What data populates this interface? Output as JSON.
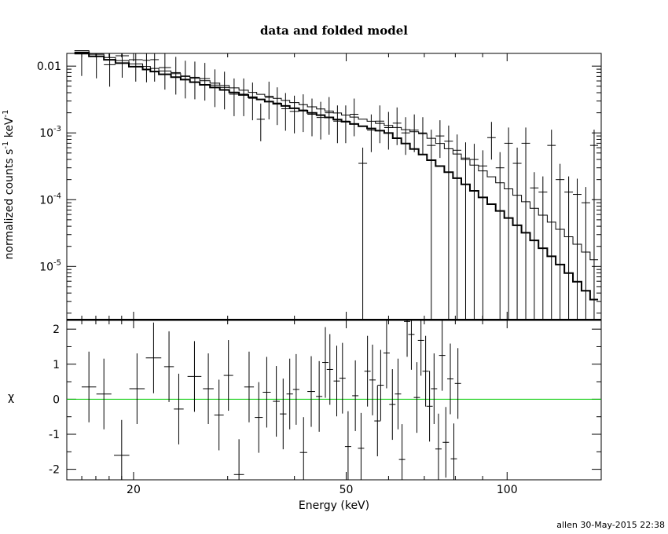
{
  "chart_data": [
    {
      "type": "line",
      "panel": "top",
      "title": "data and folded model",
      "xlabel": "",
      "ylabel_parts": [
        "normalized counts s",
        "-1",
        " keV",
        "-1"
      ],
      "xscale": "log",
      "yscale": "log",
      "xlim": [
        15,
        150
      ],
      "ylim": [
        1.6e-06,
        0.0155
      ],
      "yticks": [
        {
          "value": 0.01,
          "base": "0.01",
          "exp": ""
        },
        {
          "value": 0.001,
          "base": "10",
          "exp": "-3"
        },
        {
          "value": 0.0001,
          "base": "10",
          "exp": "-4"
        },
        {
          "value": 1e-05,
          "base": "10",
          "exp": "-5"
        }
      ],
      "series": [
        {
          "role": "data-crosses",
          "points": [
            [
              15.5,
              16.5,
              0.0152
            ],
            [
              16.5,
              17.6,
              0.014
            ],
            [
              17.6,
              18.5,
              0.0105
            ],
            [
              18.5,
              19.6,
              0.0143
            ],
            [
              19.6,
              20.8,
              0.0125
            ],
            [
              20.8,
              21.5,
              0.0122
            ],
            [
              21.5,
              22.3,
              0.0125
            ],
            [
              22.3,
              23.5,
              0.0095
            ],
            [
              23.5,
              24.5,
              0.008
            ],
            [
              24.5,
              25.5,
              0.007
            ],
            [
              25.5,
              26.6,
              0.0068
            ],
            [
              26.6,
              27.8,
              0.0065
            ],
            [
              27.8,
              29.0,
              0.0052
            ],
            [
              29.0,
              30.2,
              0.0048
            ],
            [
              30.2,
              31.5,
              0.0038
            ],
            [
              31.5,
              32.8,
              0.0038
            ],
            [
              32.8,
              34.0,
              0.0033
            ],
            [
              34.0,
              35.2,
              0.0016
            ],
            [
              35.2,
              36.5,
              0.0034
            ],
            [
              36.5,
              37.8,
              0.0028
            ],
            [
              37.8,
              39.2,
              0.0023
            ],
            [
              39.2,
              40.8,
              0.0021
            ],
            [
              40.8,
              42.3,
              0.0022
            ],
            [
              42.3,
              44.0,
              0.0019
            ],
            [
              44.0,
              45.6,
              0.0017
            ],
            [
              45.6,
              47.3,
              0.002
            ],
            [
              47.3,
              49.0,
              0.0015
            ],
            [
              49.0,
              50.8,
              0.0015
            ],
            [
              50.8,
              52.7,
              0.0019
            ],
            [
              52.7,
              54.7,
              0.00035
            ],
            [
              54.7,
              56.7,
              0.0011
            ],
            [
              56.7,
              58.9,
              0.0015
            ],
            [
              58.9,
              61.1,
              0.0012
            ],
            [
              61.1,
              63.4,
              0.0014
            ],
            [
              63.4,
              65.8,
              0.001
            ],
            [
              65.8,
              68.3,
              0.0011
            ],
            [
              68.3,
              70.8,
              0.001
            ],
            [
              70.8,
              73.5,
              0.00065
            ],
            [
              73.5,
              76.3,
              0.0009
            ],
            [
              76.3,
              79.2,
              0.00075
            ],
            [
              79.2,
              82.1,
              0.00055
            ],
            [
              82.1,
              85.2,
              0.00042
            ],
            [
              85.2,
              88.4,
              0.0004
            ],
            [
              88.4,
              91.8,
              0.00032
            ],
            [
              91.8,
              95.2,
              0.00085
            ],
            [
              95.2,
              98.8,
              0.0003
            ],
            [
              98.8,
              102.5,
              0.0007
            ],
            [
              102.5,
              106.4,
              0.00035
            ],
            [
              106.4,
              110.4,
              0.0007
            ],
            [
              110.4,
              114.5,
              0.00015
            ],
            [
              114.5,
              118.9,
              0.00013
            ],
            [
              118.9,
              123.3,
              0.00065
            ],
            [
              123.3,
              128.0,
              0.0002
            ],
            [
              128.0,
              132.8,
              0.00013
            ],
            [
              132.8,
              137.8,
              0.00012
            ],
            [
              137.8,
              143.0,
              9e-05
            ],
            [
              143.0,
              148.0,
              0.00065
            ]
          ]
        },
        {
          "role": "model-steps",
          "edges": [
            15.5,
            16.5,
            17.6,
            18.5,
            19.6,
            20.8,
            21.5,
            22.3,
            23.5,
            24.5,
            25.5,
            26.6,
            27.8,
            29.0,
            30.2,
            31.5,
            32.8,
            34.0,
            35.2,
            36.5,
            37.8,
            39.2,
            40.8,
            42.3,
            44.0,
            45.6,
            47.3,
            49.0,
            50.8,
            52.7,
            54.7,
            56.7,
            58.9,
            61.1,
            63.4,
            65.8,
            68.3,
            70.8,
            73.5,
            76.3,
            79.2,
            82.1,
            85.2,
            88.4,
            91.8,
            95.2,
            98.8,
            102.5,
            106.4,
            110.4,
            114.5,
            118.9,
            123.3,
            128.0,
            132.8,
            137.8,
            143.0,
            148.0
          ]
        }
      ]
    },
    {
      "type": "scatter",
      "panel": "bottom",
      "xlabel": "Energy (keV)",
      "ylabel": "χ",
      "xscale": "log",
      "xlim": [
        15,
        150
      ],
      "ylim": [
        -2.3,
        2.25
      ],
      "xticks": [
        {
          "value": 20,
          "label": "20"
        },
        {
          "value": 50,
          "label": "50"
        },
        {
          "value": 100,
          "label": "100"
        }
      ],
      "yticks": [
        {
          "value": 2,
          "label": "2"
        },
        {
          "value": 1,
          "label": "1"
        },
        {
          "value": 0,
          "label": "0"
        },
        {
          "value": -1,
          "label": "-1"
        },
        {
          "value": -2,
          "label": "-2"
        }
      ],
      "zero_line_color": "#00cc00",
      "points": [
        [
          16.5,
          0.35
        ],
        [
          17.6,
          0.15
        ],
        [
          19.0,
          -1.6
        ],
        [
          20.3,
          0.3
        ],
        [
          21.8,
          1.18
        ],
        [
          23.3,
          0.93
        ],
        [
          24.3,
          -0.28
        ],
        [
          26.0,
          0.65
        ],
        [
          27.6,
          0.3
        ],
        [
          28.9,
          -0.45
        ],
        [
          30.1,
          0.68
        ],
        [
          31.5,
          -2.15
        ],
        [
          32.9,
          0.35
        ],
        [
          34.3,
          -0.52
        ],
        [
          35.5,
          0.2
        ],
        [
          37.0,
          -0.06
        ],
        [
          38.1,
          -0.42
        ],
        [
          39.2,
          0.15
        ],
        [
          40.3,
          0.28
        ],
        [
          41.6,
          -1.52
        ],
        [
          43.0,
          0.22
        ],
        [
          44.5,
          0.08
        ],
        [
          45.7,
          1.05
        ],
        [
          46.6,
          0.85
        ],
        [
          48.0,
          0.52
        ],
        [
          49.2,
          0.6
        ],
        [
          50.4,
          -1.35
        ],
        [
          52.0,
          0.1
        ],
        [
          53.3,
          -1.4
        ],
        [
          54.8,
          0.8
        ],
        [
          56.0,
          0.55
        ],
        [
          57.2,
          -0.62
        ],
        [
          58.0,
          0.4
        ],
        [
          59.5,
          1.32
        ],
        [
          61.0,
          -0.15
        ],
        [
          62.5,
          0.15
        ],
        [
          63.6,
          -1.72
        ],
        [
          65.0,
          2.22
        ],
        [
          66.2,
          1.85
        ],
        [
          67.8,
          0.05
        ],
        [
          69.0,
          1.68
        ],
        [
          70.4,
          0.8
        ],
        [
          71.6,
          -0.2
        ],
        [
          73.0,
          0.3
        ],
        [
          74.4,
          -1.42
        ],
        [
          75.6,
          1.25
        ],
        [
          76.8,
          -1.23
        ],
        [
          78.3,
          0.58
        ],
        [
          79.5,
          -1.7
        ],
        [
          80.9,
          0.45
        ]
      ]
    }
  ],
  "footer": {
    "stamp": "allen 30-May-2015 22:38"
  }
}
